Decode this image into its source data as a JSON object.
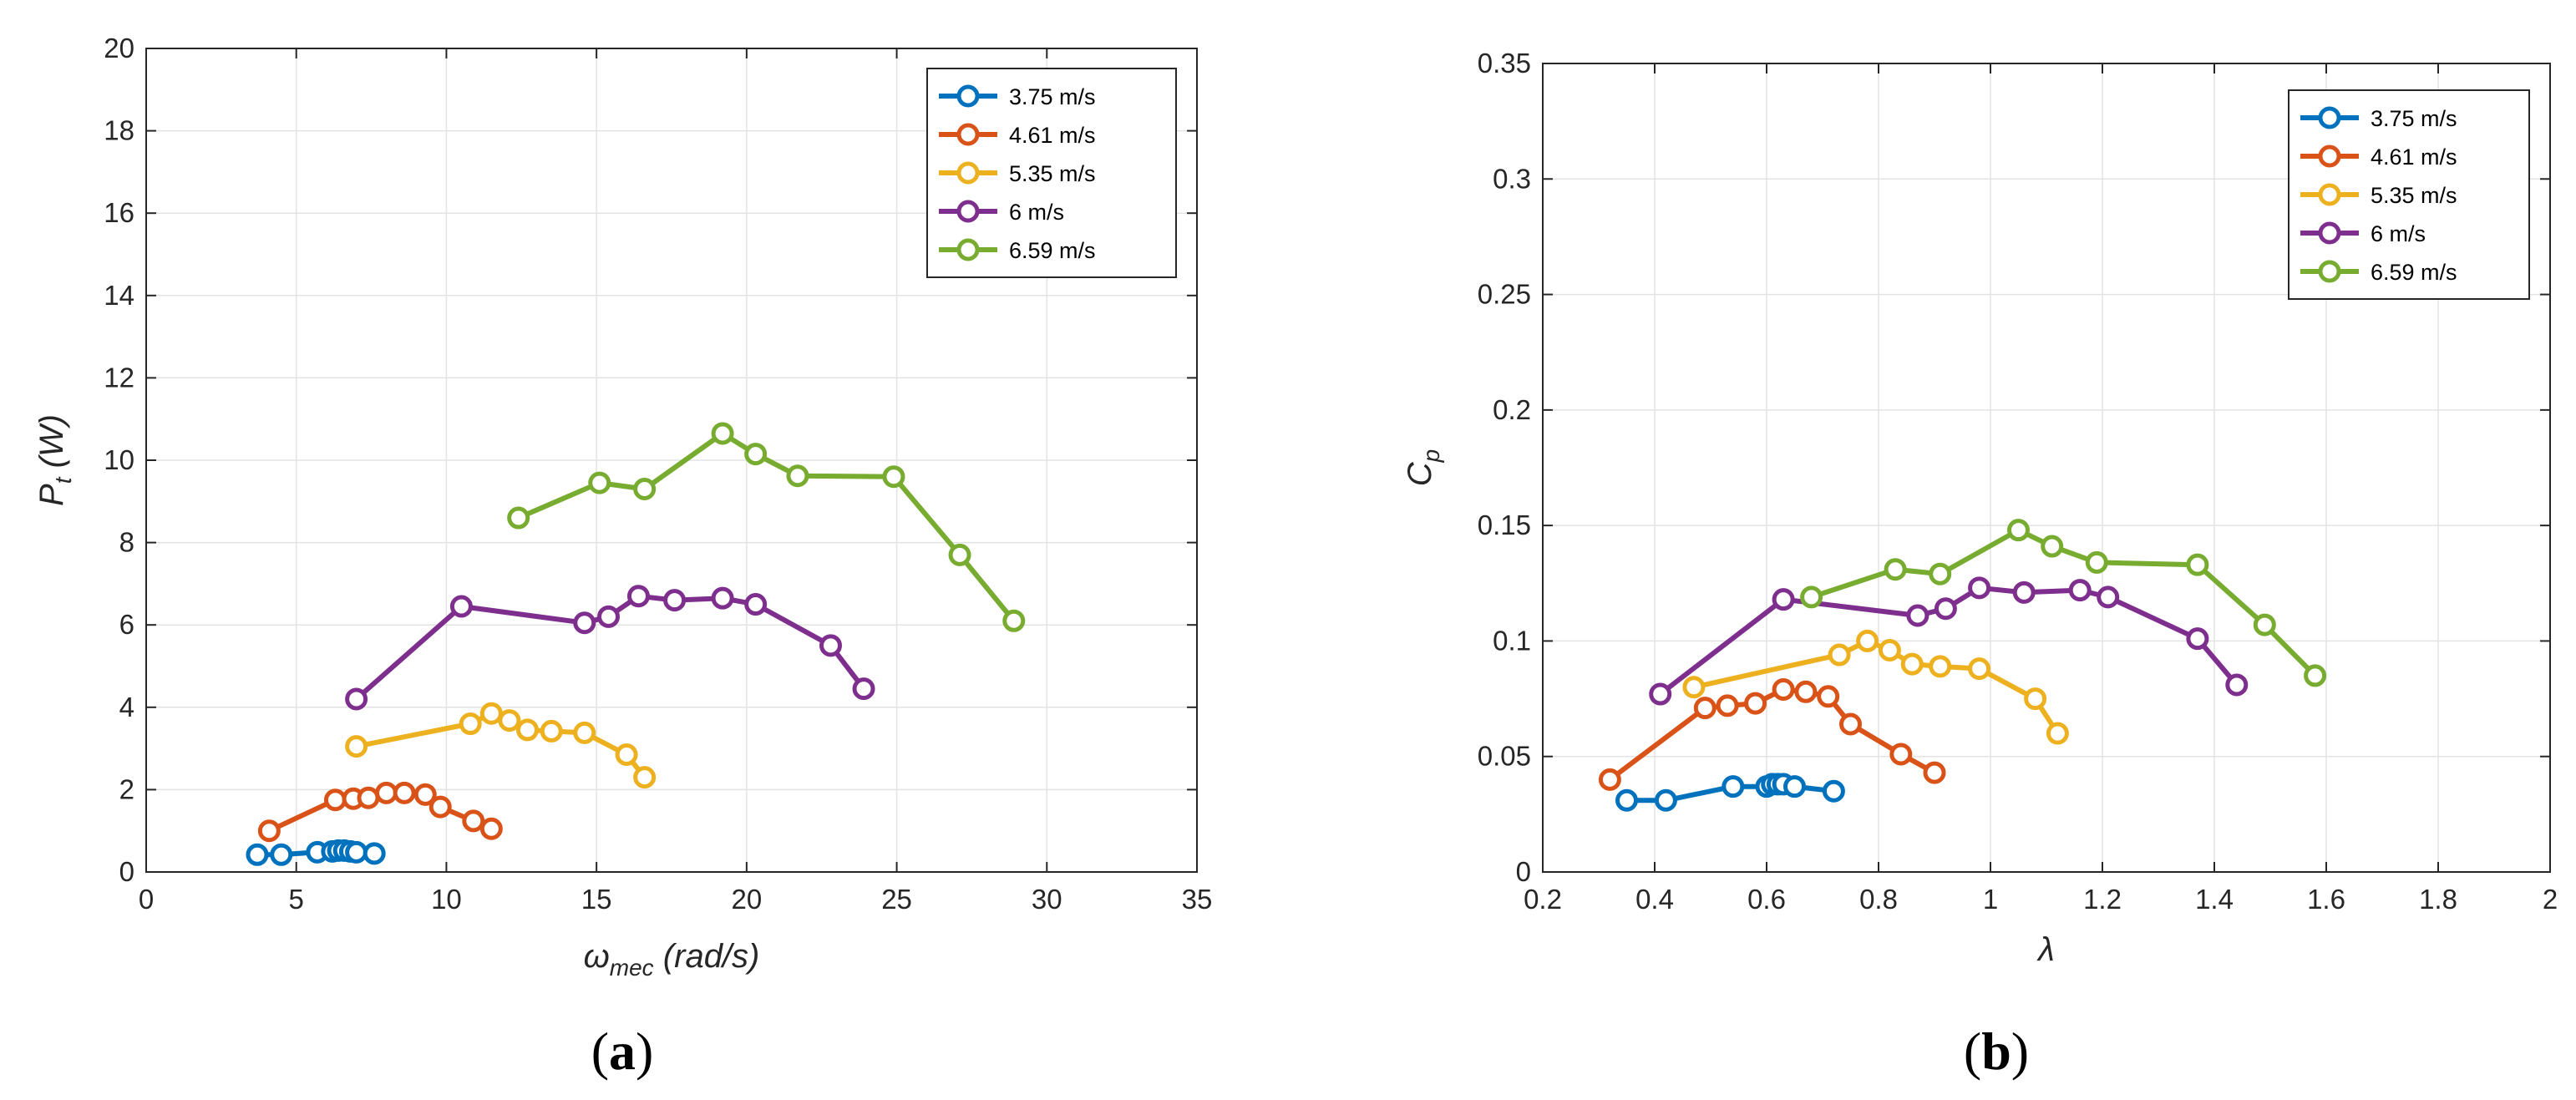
{
  "chart_data": [
    {
      "type": "line",
      "panel_label": "(a)",
      "xlabel": {
        "symbol": "ω",
        "sub": "mec",
        "unit": " (rad/s)"
      },
      "ylabel": {
        "symbol": "P",
        "sub": "t",
        "unit": " (W)"
      },
      "xlim": [
        0,
        35
      ],
      "ylim": [
        0,
        20
      ],
      "xticks": [
        0,
        5,
        10,
        15,
        20,
        25,
        30,
        35
      ],
      "yticks": [
        0,
        2,
        4,
        6,
        8,
        10,
        12,
        14,
        16,
        18,
        20
      ],
      "xtick_labels": [
        "0",
        "5",
        "10",
        "15",
        "20",
        "25",
        "30",
        "35"
      ],
      "ytick_labels": [
        "0",
        "2",
        "4",
        "6",
        "8",
        "10",
        "12",
        "14",
        "16",
        "18",
        "20"
      ],
      "grid": true,
      "legend_position": "top-right",
      "series": [
        {
          "name": "3.75 m/s",
          "color": "#0072BD",
          "x": [
            3.7,
            4.5,
            5.7,
            6.2,
            6.4,
            6.6,
            6.8,
            7.0,
            7.6
          ],
          "y": [
            0.42,
            0.42,
            0.48,
            0.5,
            0.52,
            0.52,
            0.5,
            0.48,
            0.45
          ]
        },
        {
          "name": "4.61 m/s",
          "color": "#D95319",
          "x": [
            4.1,
            6.3,
            6.9,
            7.4,
            8.0,
            8.6,
            9.3,
            9.8,
            10.9,
            11.5
          ],
          "y": [
            1.0,
            1.75,
            1.78,
            1.8,
            1.92,
            1.92,
            1.88,
            1.58,
            1.24,
            1.05
          ]
        },
        {
          "name": "5.35 m/s",
          "color": "#EDB120",
          "x": [
            7.0,
            10.8,
            11.5,
            12.1,
            12.7,
            13.5,
            14.6,
            16.0,
            16.6
          ],
          "y": [
            3.05,
            3.6,
            3.85,
            3.68,
            3.45,
            3.42,
            3.38,
            2.85,
            2.3
          ]
        },
        {
          "name": "6 m/s",
          "color": "#7E2F8E",
          "x": [
            7.0,
            10.5,
            14.6,
            15.4,
            16.4,
            17.6,
            19.2,
            20.3,
            22.8,
            23.9
          ],
          "y": [
            4.2,
            6.45,
            6.05,
            6.2,
            6.7,
            6.6,
            6.65,
            6.5,
            5.5,
            4.45
          ]
        },
        {
          "name": "6.59 m/s",
          "color": "#77AC30",
          "x": [
            12.4,
            15.1,
            16.6,
            19.2,
            20.3,
            21.7,
            24.9,
            27.1,
            28.9
          ],
          "y": [
            8.6,
            9.45,
            9.3,
            10.65,
            10.15,
            9.62,
            9.6,
            7.7,
            6.1
          ]
        }
      ]
    },
    {
      "type": "line",
      "panel_label": "(b)",
      "xlabel": {
        "symbol": "λ",
        "sub": "",
        "unit": ""
      },
      "ylabel": {
        "symbol": "C",
        "sub": "p",
        "unit": ""
      },
      "xlim": [
        0.2,
        2
      ],
      "ylim": [
        0,
        0.35
      ],
      "xticks": [
        0.2,
        0.4,
        0.6,
        0.8,
        1,
        1.2,
        1.4,
        1.6,
        1.8,
        2
      ],
      "yticks": [
        0,
        0.05,
        0.1,
        0.15,
        0.2,
        0.25,
        0.3,
        0.35
      ],
      "xtick_labels": [
        "0.2",
        "0.4",
        "0.6",
        "0.8",
        "1",
        "1.2",
        "1.4",
        "1.6",
        "1.8",
        "2"
      ],
      "ytick_labels": [
        "0",
        "0.05",
        "0.1",
        "0.15",
        "0.2",
        "0.25",
        "0.3",
        "0.35"
      ],
      "grid": true,
      "legend_position": "top-right",
      "series": [
        {
          "name": "3.75 m/s",
          "color": "#0072BD",
          "x": [
            0.35,
            0.42,
            0.54,
            0.6,
            0.61,
            0.62,
            0.63,
            0.65,
            0.72
          ],
          "y": [
            0.031,
            0.031,
            0.037,
            0.037,
            0.038,
            0.038,
            0.038,
            0.037,
            0.035
          ]
        },
        {
          "name": "4.61 m/s",
          "color": "#D95319",
          "x": [
            0.32,
            0.49,
            0.53,
            0.58,
            0.63,
            0.67,
            0.71,
            0.75,
            0.84,
            0.9
          ],
          "y": [
            0.04,
            0.071,
            0.072,
            0.073,
            0.079,
            0.078,
            0.076,
            0.064,
            0.051,
            0.043
          ]
        },
        {
          "name": "5.35 m/s",
          "color": "#EDB120",
          "x": [
            0.47,
            0.73,
            0.78,
            0.82,
            0.86,
            0.91,
            0.98,
            1.08,
            1.12
          ],
          "y": [
            0.08,
            0.094,
            0.1,
            0.096,
            0.09,
            0.089,
            0.088,
            0.075,
            0.06
          ]
        },
        {
          "name": "6 m/s",
          "color": "#7E2F8E",
          "x": [
            0.41,
            0.63,
            0.87,
            0.92,
            0.98,
            1.06,
            1.16,
            1.21,
            1.37,
            1.44
          ],
          "y": [
            0.077,
            0.118,
            0.111,
            0.114,
            0.123,
            0.121,
            0.122,
            0.119,
            0.101,
            0.081
          ]
        },
        {
          "name": "6.59 m/s",
          "color": "#77AC30",
          "x": [
            0.68,
            0.83,
            0.91,
            1.05,
            1.11,
            1.19,
            1.37,
            1.49,
            1.58
          ],
          "y": [
            0.119,
            0.131,
            0.129,
            0.148,
            0.141,
            0.134,
            0.133,
            0.107,
            0.085
          ]
        }
      ]
    }
  ]
}
